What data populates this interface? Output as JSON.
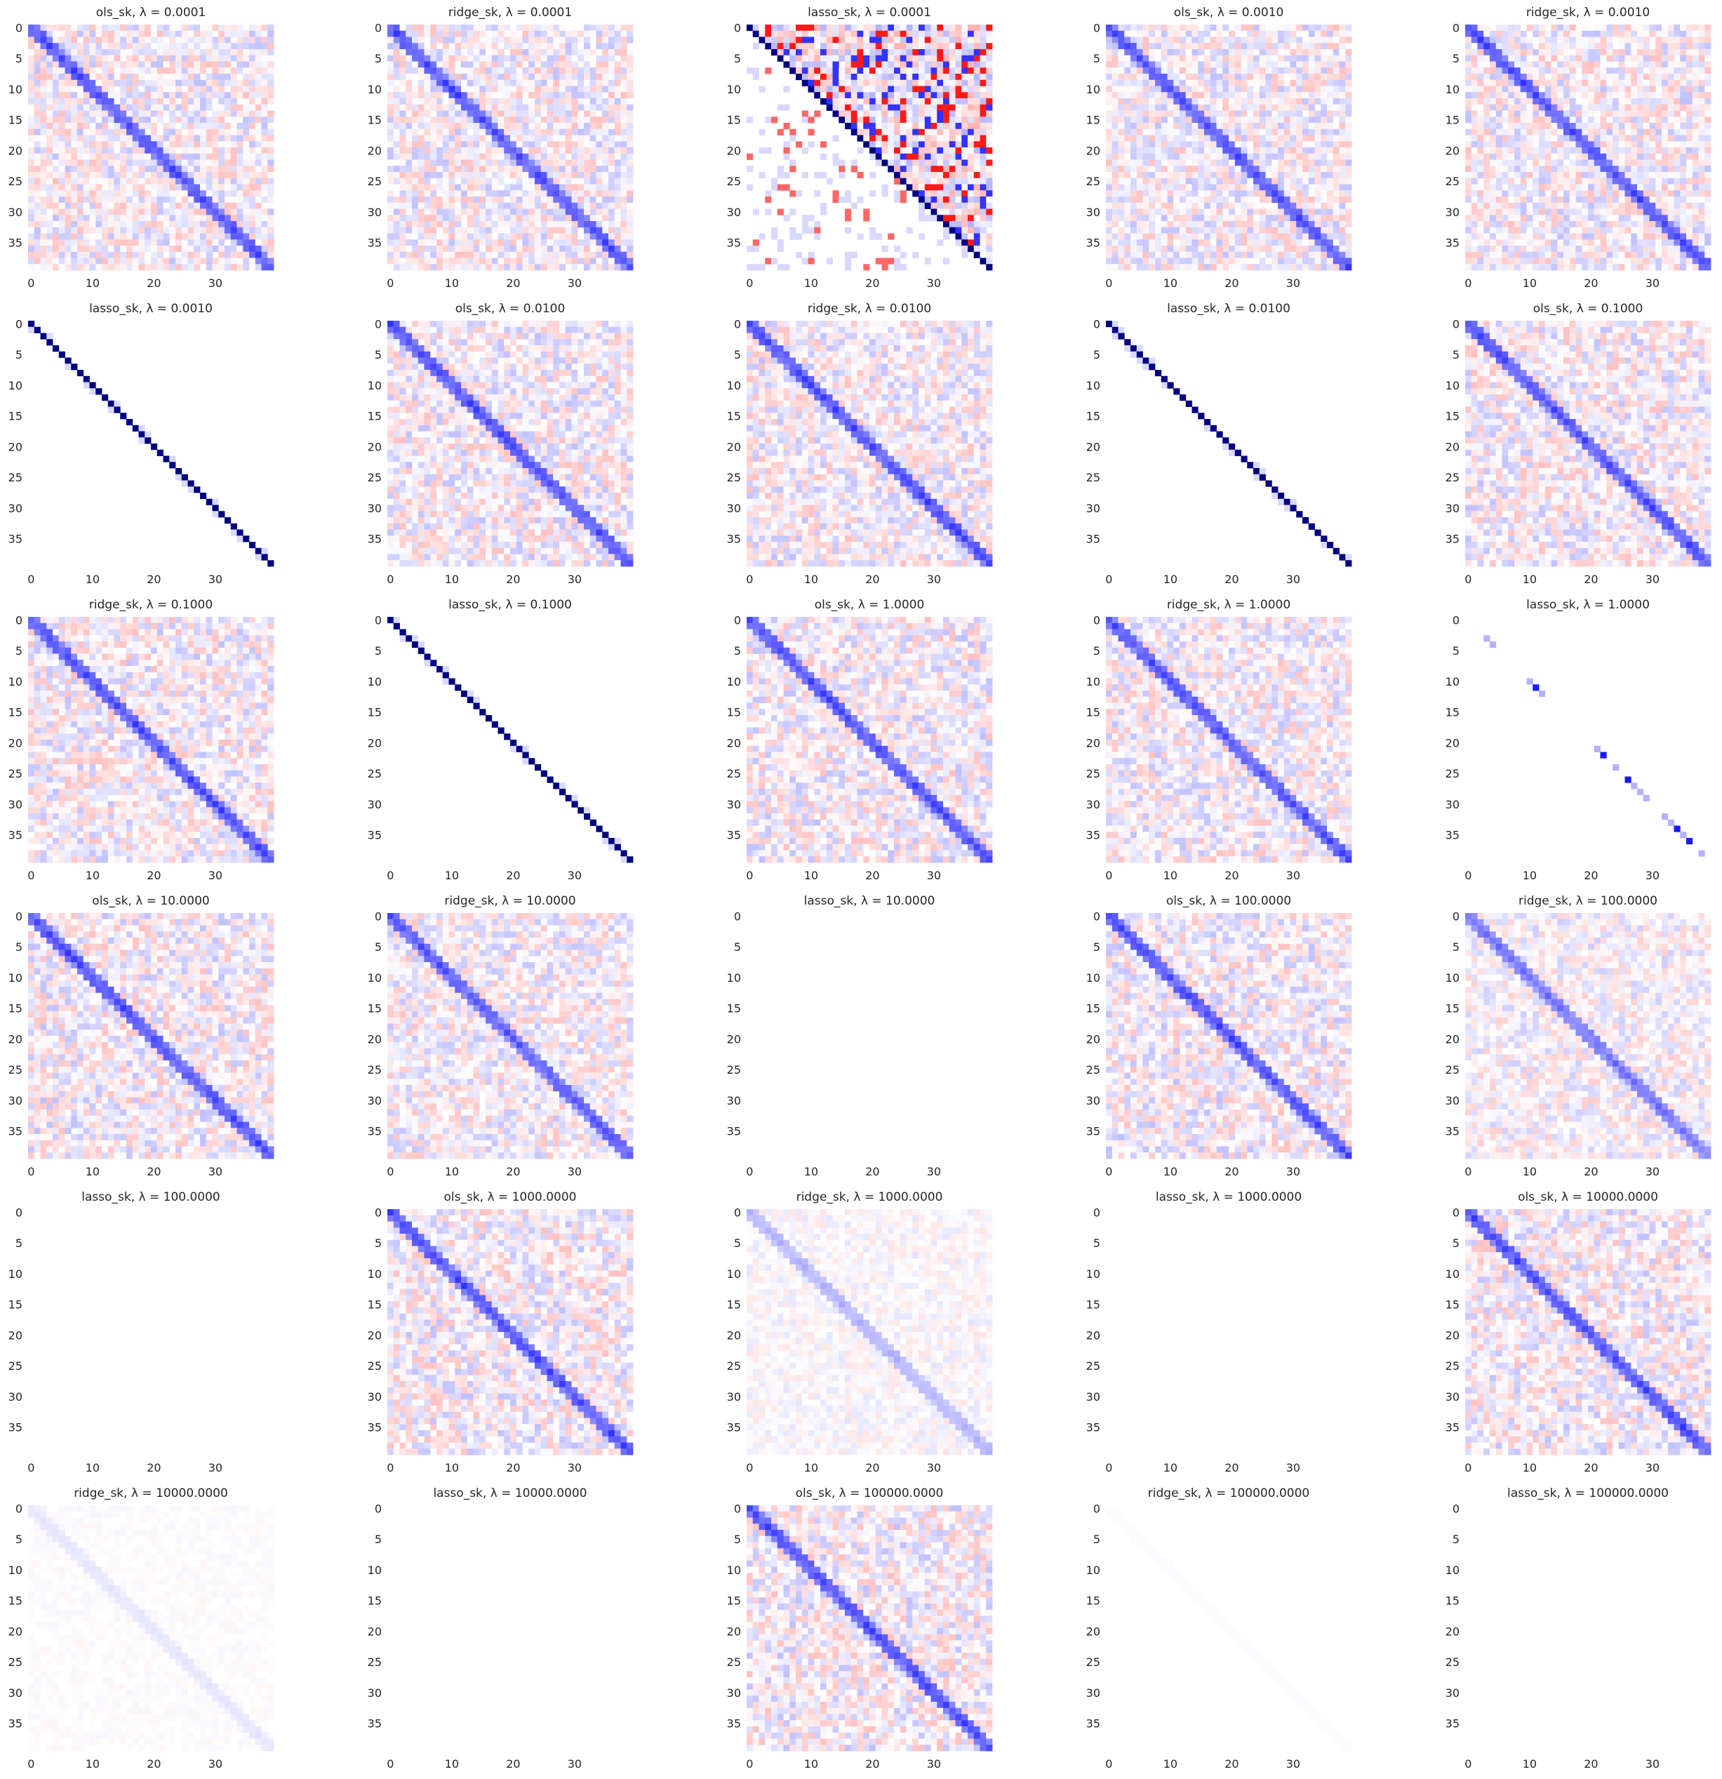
{
  "chart_data": {
    "type": "heatmap",
    "grid": {
      "rows": 6,
      "cols": 5
    },
    "matrix_size": 40,
    "x_ticks": [
      "0",
      "10",
      "20",
      "30"
    ],
    "y_ticks": [
      "0",
      "5",
      "10",
      "15",
      "20",
      "25",
      "30",
      "35"
    ],
    "colormap": {
      "negative": "#ff0000",
      "zero": "#ffffff",
      "positive": "#0000ff",
      "strong_positive": "#000080"
    },
    "panels": [
      {
        "title": "ols_sk, λ = 0.0001",
        "pattern": "dense",
        "strength": 0.7
      },
      {
        "title": "ridge_sk, λ = 0.0001",
        "pattern": "dense",
        "strength": 0.7
      },
      {
        "title": "lasso_sk, λ = 0.0001",
        "pattern": "lasso_upper",
        "strength": 1.0
      },
      {
        "title": "ols_sk, λ = 0.0010",
        "pattern": "dense",
        "strength": 0.7
      },
      {
        "title": "ridge_sk, λ = 0.0010",
        "pattern": "dense",
        "strength": 0.7
      },
      {
        "title": "lasso_sk, λ = 0.0010",
        "pattern": "diag_dark",
        "strength": 1.0
      },
      {
        "title": "ols_sk, λ = 0.0100",
        "pattern": "dense",
        "strength": 0.7
      },
      {
        "title": "ridge_sk, λ = 0.0100",
        "pattern": "dense",
        "strength": 0.7
      },
      {
        "title": "lasso_sk, λ = 0.0100",
        "pattern": "diag_dark",
        "strength": 1.0
      },
      {
        "title": "ols_sk, λ = 0.1000",
        "pattern": "dense",
        "strength": 0.7
      },
      {
        "title": "ridge_sk, λ = 0.1000",
        "pattern": "dense",
        "strength": 0.7
      },
      {
        "title": "lasso_sk, λ = 0.1000",
        "pattern": "diag_dark",
        "strength": 1.0
      },
      {
        "title": "ols_sk, λ = 1.0000",
        "pattern": "dense",
        "strength": 0.7
      },
      {
        "title": "ridge_sk, λ = 1.0000",
        "pattern": "dense",
        "strength": 0.68
      },
      {
        "title": "lasso_sk, λ = 1.0000",
        "pattern": "sparse_diag",
        "strength": 1.0
      },
      {
        "title": "ols_sk, λ = 10.0000",
        "pattern": "dense",
        "strength": 0.7
      },
      {
        "title": "ridge_sk, λ = 10.0000",
        "pattern": "dense",
        "strength": 0.65
      },
      {
        "title": "lasso_sk, λ = 10.0000",
        "pattern": "blank",
        "strength": 0
      },
      {
        "title": "ols_sk, λ = 100.0000",
        "pattern": "dense",
        "strength": 0.7
      },
      {
        "title": "ridge_sk, λ = 100.0000",
        "pattern": "dense",
        "strength": 0.55
      },
      {
        "title": "lasso_sk, λ = 100.0000",
        "pattern": "blank",
        "strength": 0
      },
      {
        "title": "ols_sk, λ = 1000.0000",
        "pattern": "dense",
        "strength": 0.7
      },
      {
        "title": "ridge_sk, λ = 1000.0000",
        "pattern": "dense",
        "strength": 0.3
      },
      {
        "title": "lasso_sk, λ = 1000.0000",
        "pattern": "blank",
        "strength": 0
      },
      {
        "title": "ols_sk, λ = 10000.0000",
        "pattern": "dense",
        "strength": 0.7
      },
      {
        "title": "ridge_sk, λ = 10000.0000",
        "pattern": "dense",
        "strength": 0.1
      },
      {
        "title": "lasso_sk, λ = 10000.0000",
        "pattern": "blank",
        "strength": 0
      },
      {
        "title": "ols_sk, λ = 100000.0000",
        "pattern": "dense",
        "strength": 0.7
      },
      {
        "title": "ridge_sk, λ = 100000.0000",
        "pattern": "dense",
        "strength": 0.015
      },
      {
        "title": "lasso_sk, λ = 100000.0000",
        "pattern": "blank",
        "strength": 0
      }
    ]
  }
}
